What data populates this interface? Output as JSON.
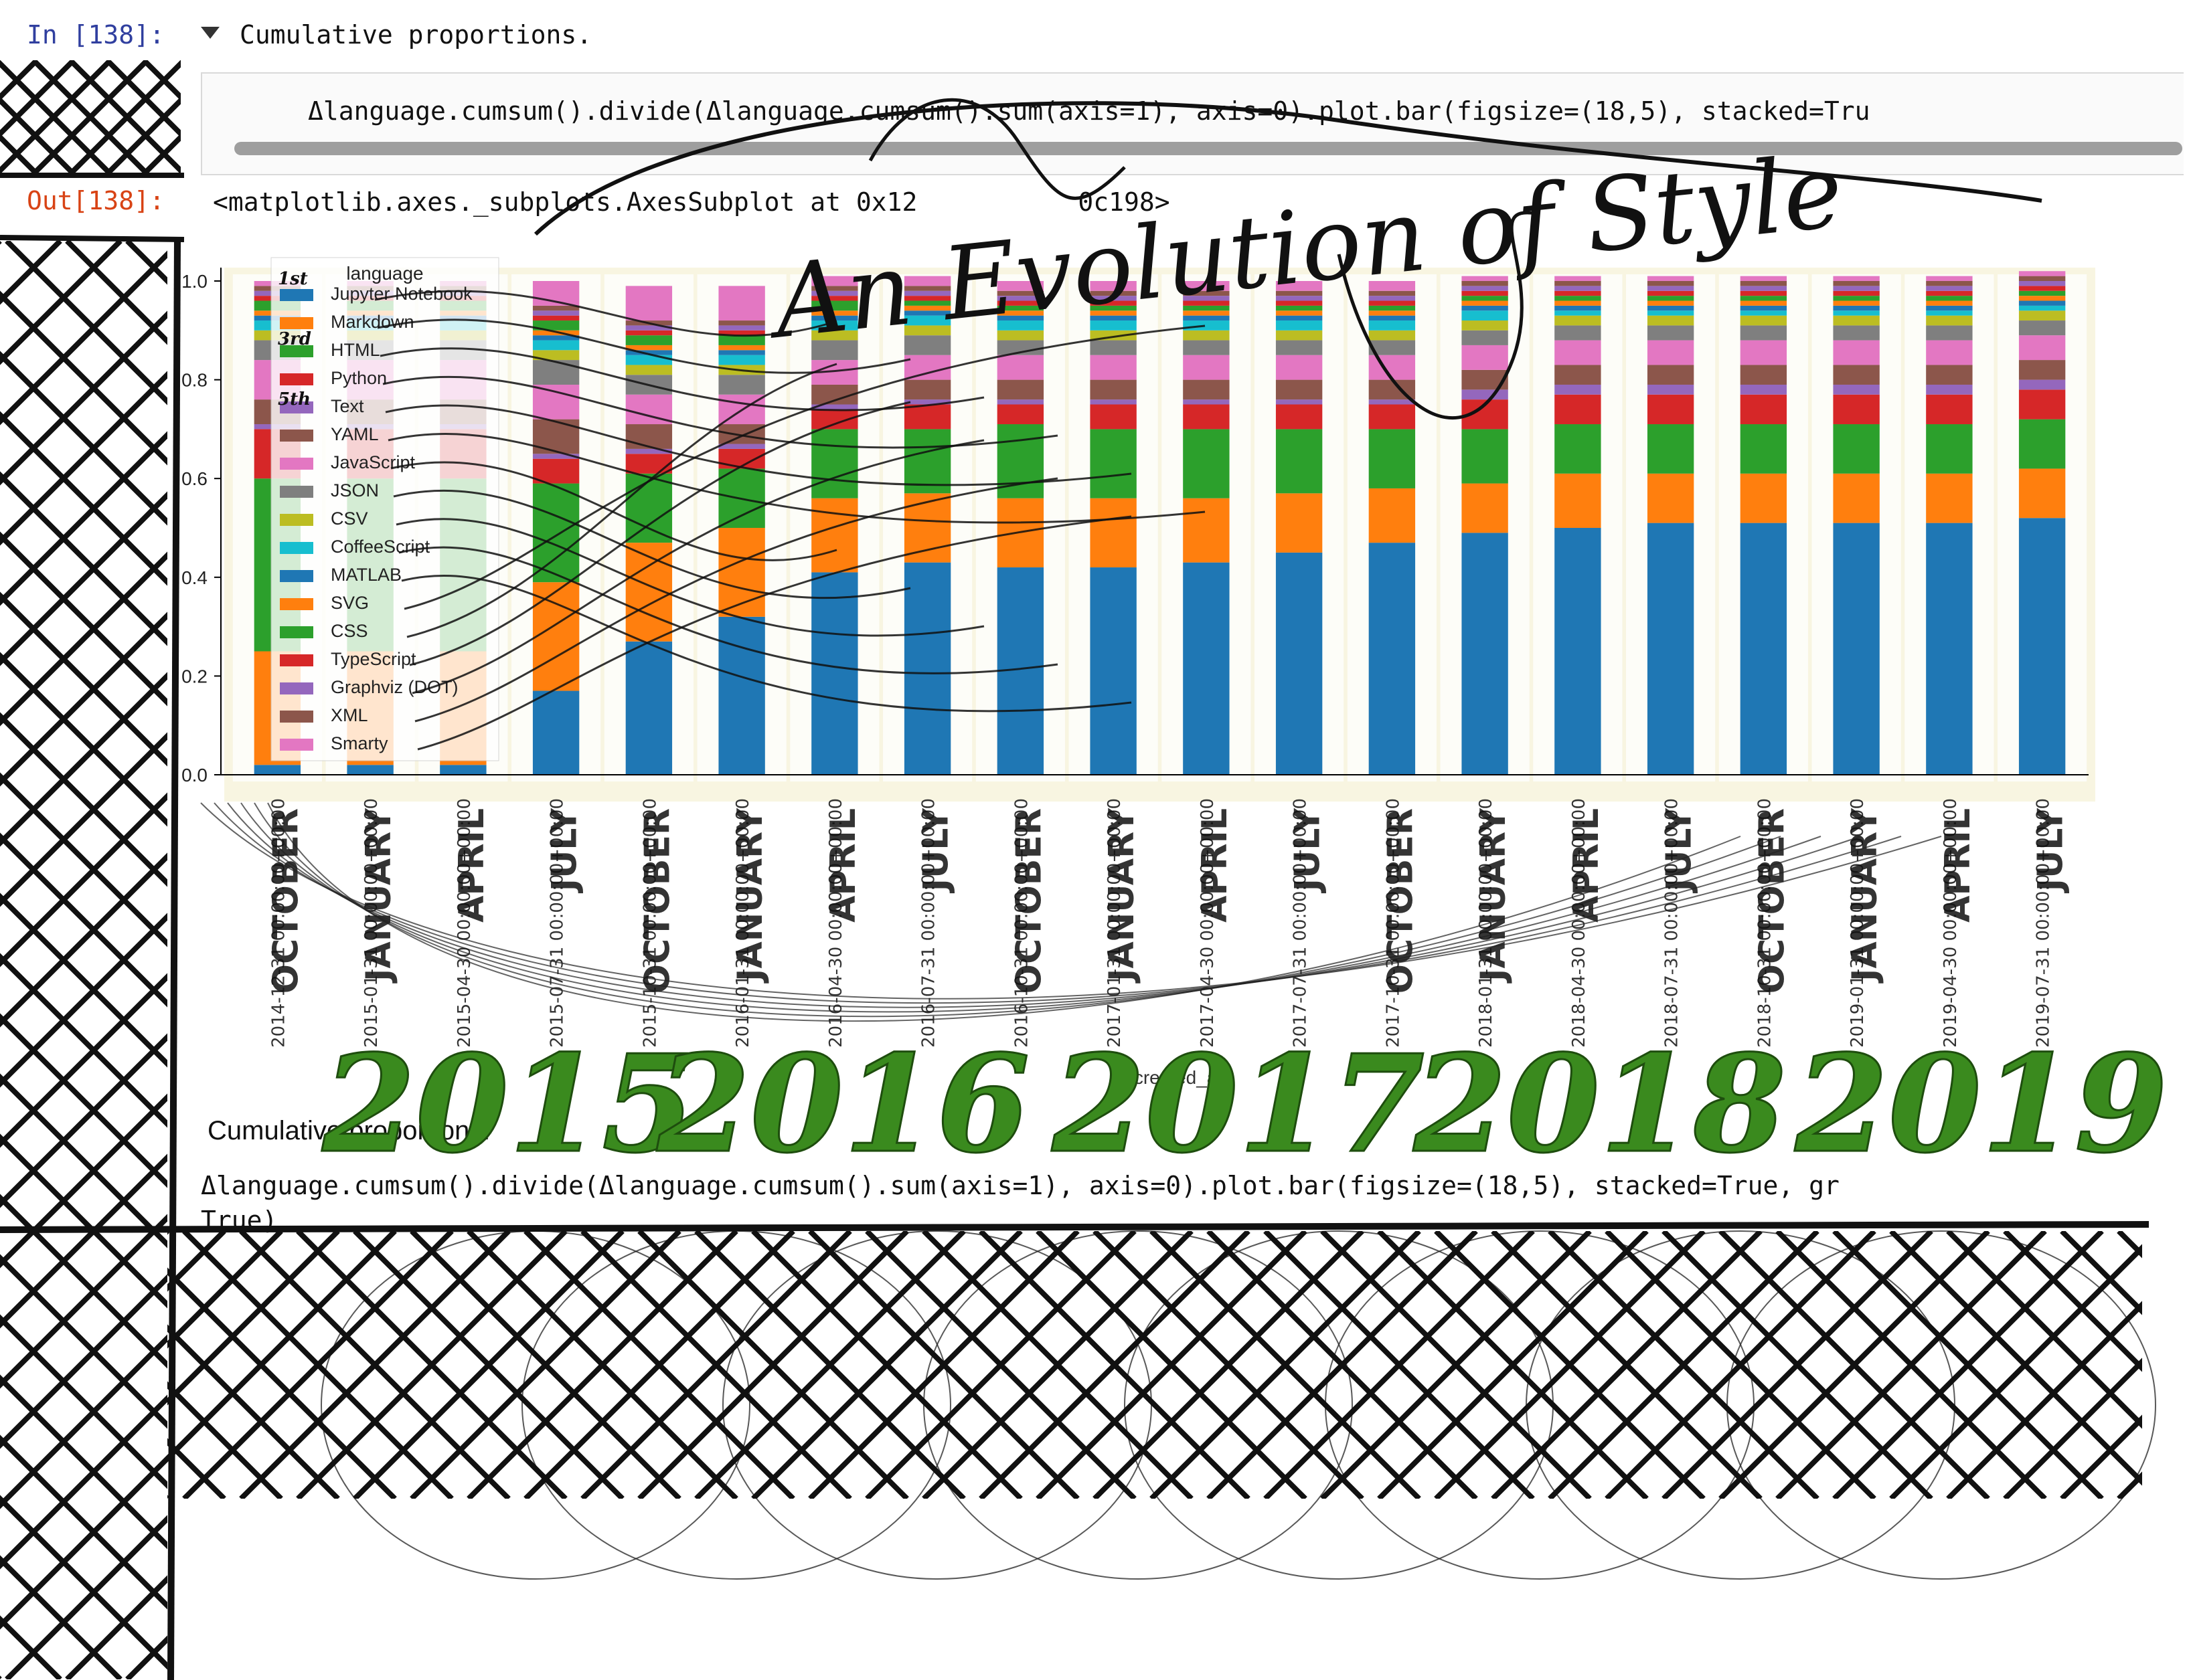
{
  "notebook": {
    "in_prompt": "In [138]:",
    "out_prompt": "Out[138]:",
    "markdown_title": "Cumulative proportions.",
    "code": "Δlanguage.cumsum().divide(Δlanguage.cumsum().sum(axis=1), axis=0).plot.bar(figsize=(18,5), stacked=Tru",
    "output_repr": "<matplotlib.axes._subplots.AxesSubplot at 0x12",
    "output_repr_tail": "0c198>",
    "bottom_title": "Cumulative proportions.",
    "bottom_code_line1": "Δlanguage.cumsum().divide(Δlanguage.cumsum().sum(axis=1), axis=0).plot.bar(figsize=(18,5), stacked=True, gr",
    "bottom_code_line2": "True)"
  },
  "handwriting": {
    "title": "An Evolution of Style",
    "years": [
      "2015",
      "2016",
      "2017",
      "2018",
      "2019"
    ],
    "months": [
      "OCTOBER",
      "JANUARY",
      "APRIL",
      "JULY",
      "OCTOBER",
      "JANUARY",
      "APRIL",
      "JULY",
      "OCTOBER",
      "JANUARY",
      "APRIL",
      "JULY",
      "OCTOBER",
      "JANUARY",
      "APRIL",
      "JULY",
      "OCTOBER",
      "JANUARY",
      "APRIL",
      "JULY"
    ],
    "legend_marks": [
      "1st",
      "3rd",
      "5th"
    ]
  },
  "colors": {
    "year_green": "#3a8a1e",
    "ink": "#111111",
    "chart_bg_tint": "#f3edc9"
  },
  "chart_data": {
    "type": "bar",
    "stacked": true,
    "xlabel": "created_at",
    "ylim": [
      0,
      1.0
    ],
    "yticks": [
      "0.0",
      "0.2",
      "0.4",
      "0.6",
      "0.8",
      "1.0"
    ],
    "legend_title": "language",
    "legend_placement": "top-left",
    "categories": [
      "2014-12-31 00:00:00+00:00",
      "2015-01-31 00:00:00+00:00",
      "2015-04-30 00:00:00+00:00",
      "2015-07-31 00:00:00+00:00",
      "2015-10-31 00:00:00+00:00",
      "2016-01-31 00:00:00+00:00",
      "2016-04-30 00:00:00+00:00",
      "2016-07-31 00:00:00+00:00",
      "2016-10-31 00:00:00+00:00",
      "2017-01-31 00:00:00+00:00",
      "2017-04-30 00:00:00+00:00",
      "2017-07-31 00:00:00+00:00",
      "2017-10-31 00:00:00+00:00",
      "2018-01-31 00:00:00+00:00",
      "2018-04-30 00:00:00+00:00",
      "2018-07-31 00:00:00+00:00",
      "2018-10-31 00:00:00+00:00",
      "2019-01-31 00:00:00+00:00",
      "2019-04-30 00:00:00+00:00",
      "2019-07-31 00:00:00+00:00"
    ],
    "series": [
      {
        "name": "Jupyter Notebook",
        "color": "#1f77b4",
        "values": [
          0.02,
          0.02,
          0.02,
          0.17,
          0.27,
          0.32,
          0.41,
          0.43,
          0.42,
          0.42,
          0.43,
          0.45,
          0.47,
          0.49,
          0.5,
          0.51,
          0.51,
          0.51,
          0.51,
          0.52
        ]
      },
      {
        "name": "Markdown",
        "color": "#ff7f0e",
        "values": [
          0.23,
          0.23,
          0.23,
          0.22,
          0.2,
          0.18,
          0.15,
          0.14,
          0.14,
          0.14,
          0.13,
          0.12,
          0.11,
          0.1,
          0.11,
          0.1,
          0.1,
          0.1,
          0.1,
          0.1
        ]
      },
      {
        "name": "HTML",
        "color": "#2ca02c",
        "values": [
          0.35,
          0.35,
          0.35,
          0.2,
          0.14,
          0.12,
          0.14,
          0.13,
          0.15,
          0.14,
          0.14,
          0.13,
          0.12,
          0.11,
          0.1,
          0.1,
          0.1,
          0.1,
          0.1,
          0.1
        ]
      },
      {
        "name": "Python",
        "color": "#d62728",
        "values": [
          0.1,
          0.1,
          0.1,
          0.05,
          0.04,
          0.04,
          0.04,
          0.05,
          0.04,
          0.05,
          0.05,
          0.05,
          0.05,
          0.06,
          0.06,
          0.06,
          0.06,
          0.06,
          0.06,
          0.06
        ]
      },
      {
        "name": "Text",
        "color": "#9467bd",
        "values": [
          0.01,
          0.01,
          0.01,
          0.01,
          0.01,
          0.01,
          0.01,
          0.01,
          0.01,
          0.01,
          0.01,
          0.01,
          0.01,
          0.02,
          0.02,
          0.02,
          0.02,
          0.02,
          0.02,
          0.02
        ]
      },
      {
        "name": "YAML",
        "color": "#8c564b",
        "values": [
          0.05,
          0.05,
          0.05,
          0.07,
          0.05,
          0.04,
          0.04,
          0.04,
          0.04,
          0.04,
          0.04,
          0.04,
          0.04,
          0.04,
          0.04,
          0.04,
          0.04,
          0.04,
          0.04,
          0.04
        ]
      },
      {
        "name": "JavaScript",
        "color": "#e377c2",
        "values": [
          0.08,
          0.08,
          0.08,
          0.07,
          0.06,
          0.06,
          0.05,
          0.05,
          0.05,
          0.05,
          0.05,
          0.05,
          0.05,
          0.05,
          0.05,
          0.05,
          0.05,
          0.05,
          0.05,
          0.05
        ]
      },
      {
        "name": "JSON",
        "color": "#7f7f7f",
        "values": [
          0.04,
          0.04,
          0.04,
          0.05,
          0.04,
          0.04,
          0.04,
          0.04,
          0.03,
          0.03,
          0.03,
          0.03,
          0.03,
          0.03,
          0.03,
          0.03,
          0.03,
          0.03,
          0.03,
          0.03
        ]
      },
      {
        "name": "CSV",
        "color": "#bcbd22",
        "values": [
          0.02,
          0.02,
          0.02,
          0.02,
          0.02,
          0.02,
          0.02,
          0.02,
          0.02,
          0.02,
          0.02,
          0.02,
          0.02,
          0.02,
          0.02,
          0.02,
          0.02,
          0.02,
          0.02,
          0.02
        ]
      },
      {
        "name": "CoffeeScript",
        "color": "#17becf",
        "values": [
          0.02,
          0.02,
          0.02,
          0.02,
          0.02,
          0.02,
          0.02,
          0.02,
          0.02,
          0.02,
          0.02,
          0.02,
          0.02,
          0.02,
          0.01,
          0.01,
          0.01,
          0.01,
          0.01,
          0.01
        ]
      },
      {
        "name": "MATLAB",
        "color": "#1f77b4",
        "values": [
          0.01,
          0.01,
          0.01,
          0.01,
          0.01,
          0.01,
          0.01,
          0.01,
          0.01,
          0.01,
          0.01,
          0.01,
          0.01,
          0.01,
          0.01,
          0.01,
          0.01,
          0.01,
          0.01,
          0.01
        ]
      },
      {
        "name": "SVG",
        "color": "#ff7f0e",
        "values": [
          0.01,
          0.01,
          0.01,
          0.01,
          0.01,
          0.01,
          0.01,
          0.01,
          0.01,
          0.01,
          0.01,
          0.01,
          0.01,
          0.01,
          0.01,
          0.01,
          0.01,
          0.01,
          0.01,
          0.01
        ]
      },
      {
        "name": "CSS",
        "color": "#2ca02c",
        "values": [
          0.02,
          0.02,
          0.02,
          0.02,
          0.02,
          0.02,
          0.02,
          0.01,
          0.01,
          0.01,
          0.01,
          0.01,
          0.01,
          0.01,
          0.01,
          0.01,
          0.01,
          0.01,
          0.01,
          0.01
        ]
      },
      {
        "name": "TypeScript",
        "color": "#d62728",
        "values": [
          0.01,
          0.01,
          0.01,
          0.01,
          0.01,
          0.01,
          0.01,
          0.01,
          0.01,
          0.01,
          0.01,
          0.01,
          0.01,
          0.01,
          0.01,
          0.01,
          0.01,
          0.01,
          0.01,
          0.01
        ]
      },
      {
        "name": "Graphviz (DOT)",
        "color": "#9467bd",
        "values": [
          0.01,
          0.01,
          0.01,
          0.01,
          0.01,
          0.01,
          0.01,
          0.01,
          0.01,
          0.01,
          0.01,
          0.01,
          0.01,
          0.01,
          0.01,
          0.01,
          0.01,
          0.01,
          0.01,
          0.01
        ]
      },
      {
        "name": "XML",
        "color": "#8c564b",
        "values": [
          0.01,
          0.01,
          0.01,
          0.01,
          0.01,
          0.01,
          0.01,
          0.01,
          0.01,
          0.01,
          0.01,
          0.01,
          0.01,
          0.01,
          0.01,
          0.01,
          0.01,
          0.01,
          0.01,
          0.01
        ]
      },
      {
        "name": "Smarty",
        "color": "#e377c2",
        "values": [
          0.01,
          0.01,
          0.01,
          0.05,
          0.07,
          0.07,
          0.02,
          0.02,
          0.02,
          0.02,
          0.02,
          0.02,
          0.02,
          0.01,
          0.01,
          0.01,
          0.01,
          0.01,
          0.01,
          0.01
        ]
      }
    ]
  }
}
